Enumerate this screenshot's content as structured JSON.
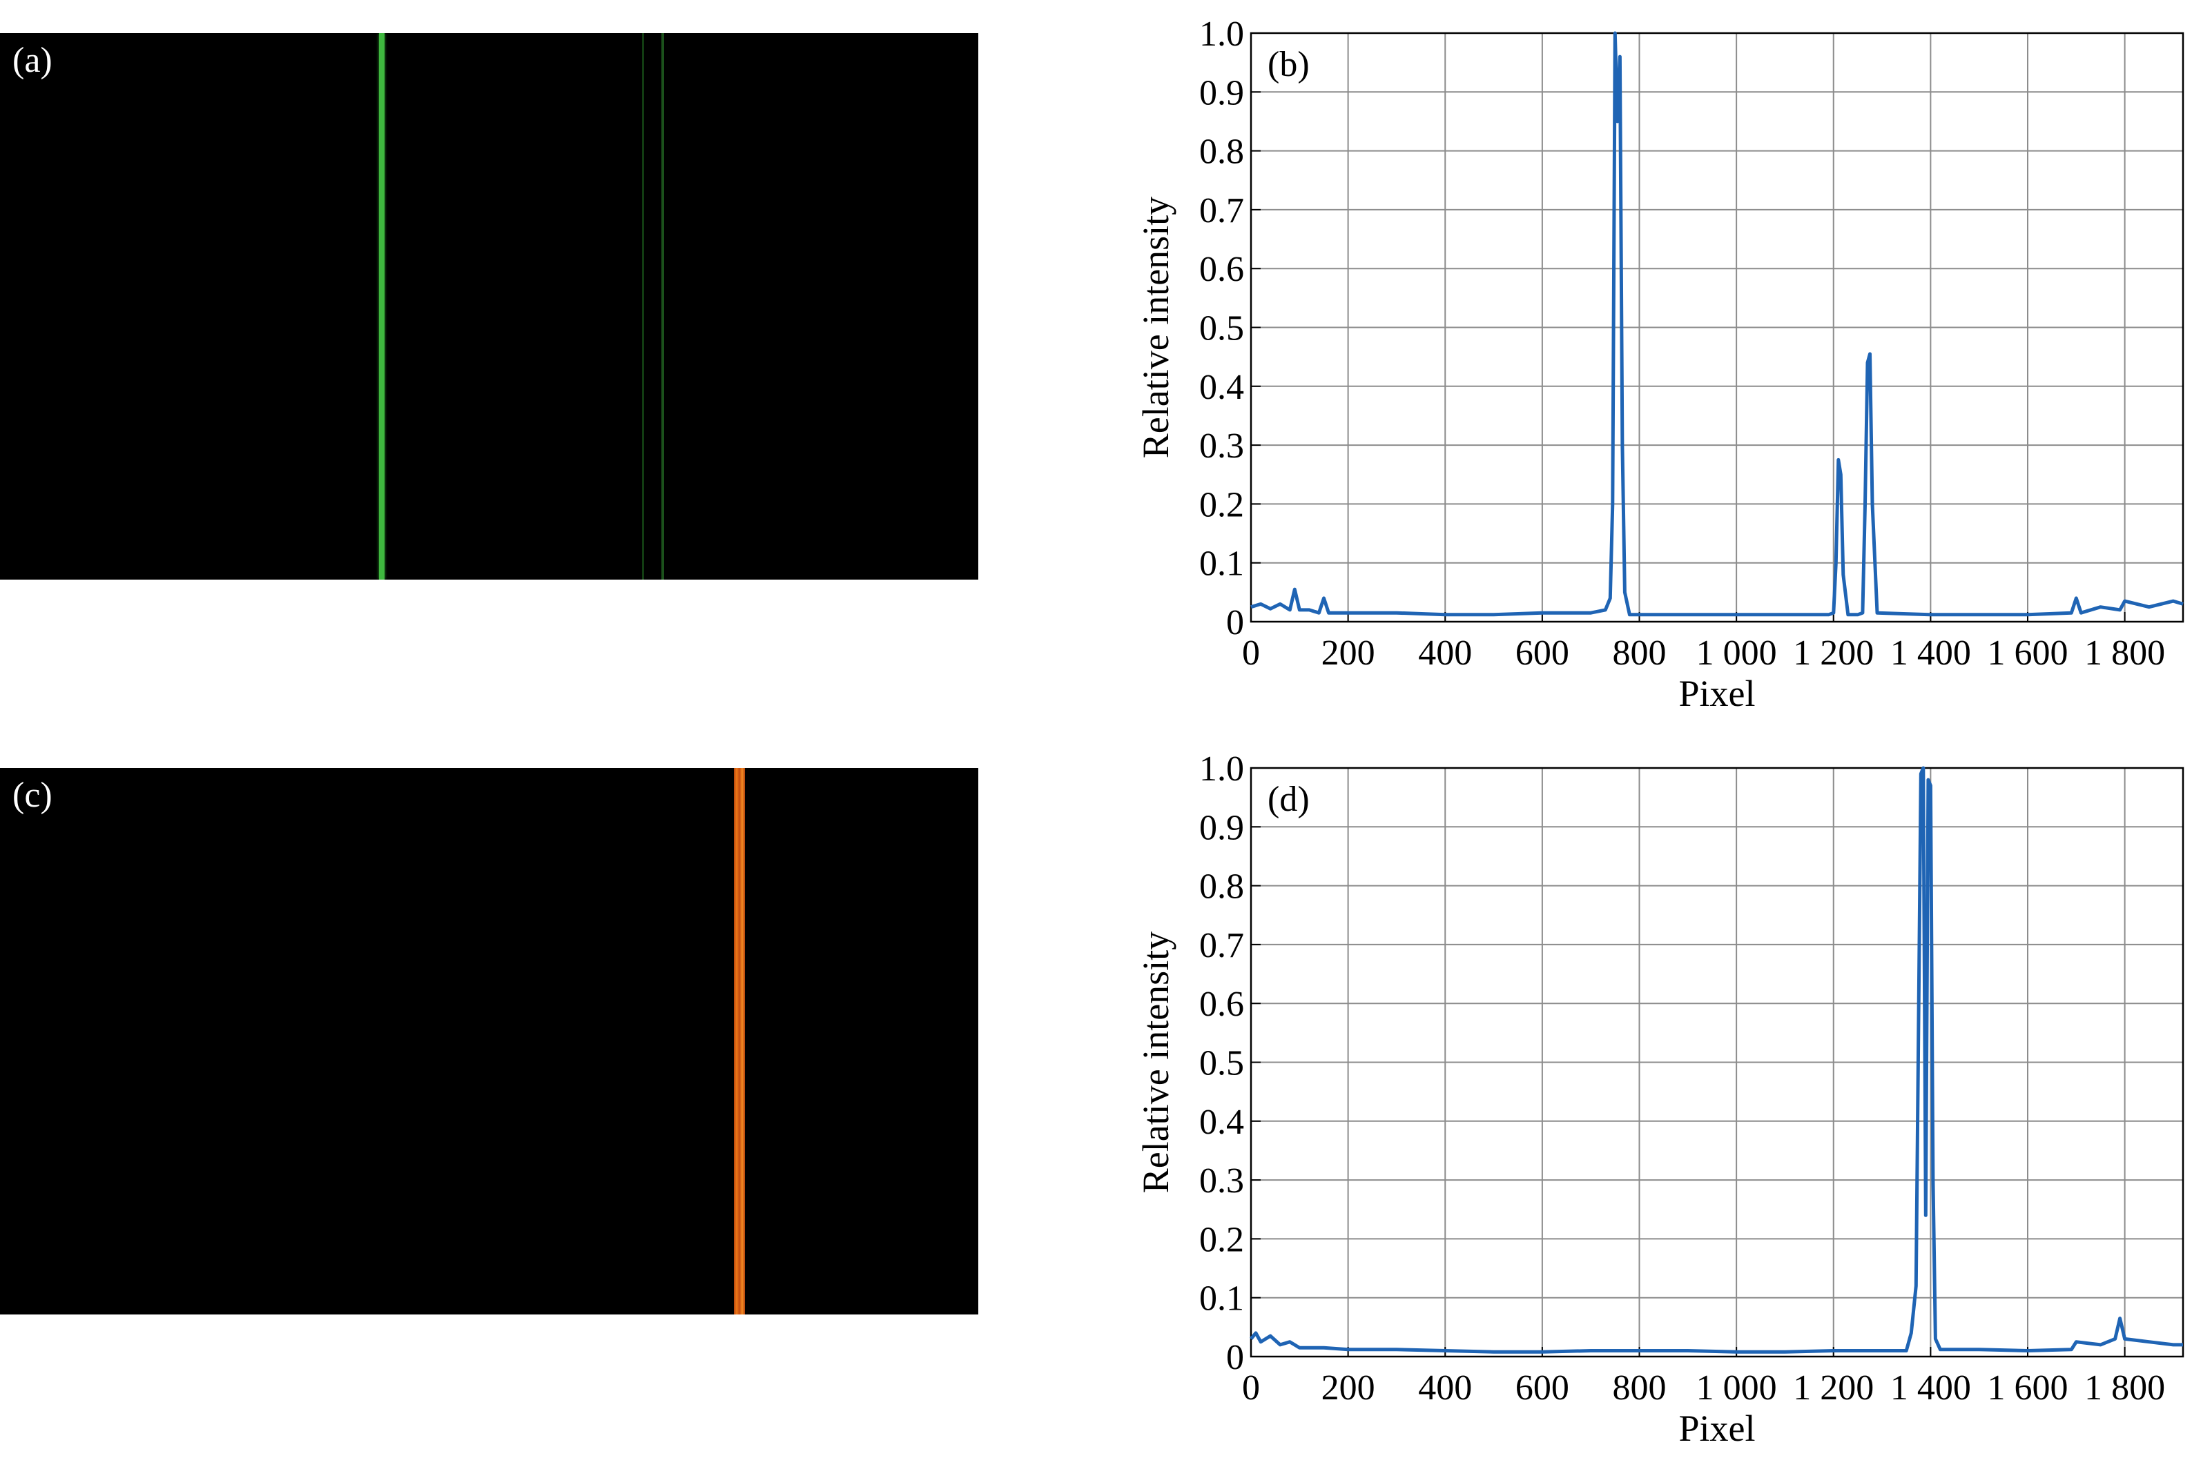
{
  "panels": {
    "a": {
      "tag": "(a)"
    },
    "c": {
      "tag": "(c)"
    }
  },
  "chart_data": [
    {
      "type": "line",
      "panel_label": "(b)",
      "xlabel": "Pixel",
      "ylabel": "Relative intensity",
      "xlim": [
        0,
        1920
      ],
      "ylim": [
        0,
        1.0
      ],
      "grid": true,
      "xtick_values": [
        0,
        200,
        400,
        600,
        800,
        1000,
        1200,
        1400,
        1600,
        1800
      ],
      "xtick_labels": [
        "0",
        "200",
        "400",
        "600",
        "800",
        "1 000",
        "1 200",
        "1 400",
        "1 600",
        "1 800"
      ],
      "ytick_values": [
        0,
        0.1,
        0.2,
        0.3,
        0.4,
        0.5,
        0.6,
        0.7,
        0.8,
        0.9,
        1.0
      ],
      "ytick_labels": [
        "0",
        "0.1",
        "0.2",
        "0.3",
        "0.4",
        "0.5",
        "0.6",
        "0.7",
        "0.8",
        "0.9",
        "1.0"
      ],
      "line_color": "#1f64b4",
      "x": [
        0,
        20,
        40,
        60,
        80,
        90,
        100,
        120,
        140,
        150,
        160,
        200,
        300,
        400,
        500,
        600,
        700,
        730,
        740,
        745,
        750,
        755,
        760,
        765,
        770,
        780,
        800,
        900,
        1000,
        1100,
        1190,
        1200,
        1205,
        1210,
        1215,
        1220,
        1230,
        1250,
        1260,
        1265,
        1270,
        1275,
        1280,
        1290,
        1400,
        1500,
        1600,
        1690,
        1700,
        1710,
        1750,
        1790,
        1800,
        1850,
        1900,
        1920
      ],
      "y": [
        0.025,
        0.03,
        0.022,
        0.03,
        0.02,
        0.055,
        0.02,
        0.02,
        0.015,
        0.04,
        0.015,
        0.015,
        0.015,
        0.012,
        0.012,
        0.015,
        0.015,
        0.02,
        0.04,
        0.2,
        1.0,
        0.85,
        0.96,
        0.3,
        0.05,
        0.012,
        0.012,
        0.012,
        0.012,
        0.012,
        0.012,
        0.015,
        0.1,
        0.275,
        0.25,
        0.08,
        0.012,
        0.012,
        0.015,
        0.2,
        0.44,
        0.455,
        0.2,
        0.015,
        0.012,
        0.012,
        0.012,
        0.015,
        0.04,
        0.015,
        0.025,
        0.02,
        0.035,
        0.025,
        0.035,
        0.03
      ]
    },
    {
      "type": "line",
      "panel_label": "(d)",
      "xlabel": "Pixel",
      "ylabel": "Relative intensity",
      "xlim": [
        0,
        1920
      ],
      "ylim": [
        0,
        1.0
      ],
      "grid": true,
      "xtick_values": [
        0,
        200,
        400,
        600,
        800,
        1000,
        1200,
        1400,
        1600,
        1800
      ],
      "xtick_labels": [
        "0",
        "200",
        "400",
        "600",
        "800",
        "1 000",
        "1 200",
        "1 400",
        "1 600",
        "1 800"
      ],
      "ytick_values": [
        0,
        0.1,
        0.2,
        0.3,
        0.4,
        0.5,
        0.6,
        0.7,
        0.8,
        0.9,
        1.0
      ],
      "ytick_labels": [
        "0",
        "0.1",
        "0.2",
        "0.3",
        "0.4",
        "0.5",
        "0.6",
        "0.7",
        "0.8",
        "0.9",
        "1.0"
      ],
      "line_color": "#1f64b4",
      "x": [
        0,
        10,
        20,
        40,
        60,
        80,
        100,
        150,
        200,
        300,
        400,
        500,
        600,
        700,
        800,
        900,
        1000,
        1100,
        1200,
        1300,
        1350,
        1360,
        1370,
        1375,
        1380,
        1385,
        1390,
        1395,
        1400,
        1405,
        1410,
        1420,
        1450,
        1500,
        1600,
        1690,
        1700,
        1750,
        1780,
        1790,
        1800,
        1850,
        1900,
        1920
      ],
      "y": [
        0.03,
        0.04,
        0.025,
        0.035,
        0.02,
        0.025,
        0.015,
        0.015,
        0.012,
        0.012,
        0.01,
        0.008,
        0.008,
        0.01,
        0.01,
        0.01,
        0.008,
        0.008,
        0.01,
        0.01,
        0.01,
        0.04,
        0.12,
        0.55,
        0.99,
        1.0,
        0.24,
        0.98,
        0.97,
        0.3,
        0.03,
        0.012,
        0.012,
        0.012,
        0.01,
        0.012,
        0.025,
        0.02,
        0.03,
        0.065,
        0.03,
        0.025,
        0.02,
        0.02
      ]
    }
  ]
}
